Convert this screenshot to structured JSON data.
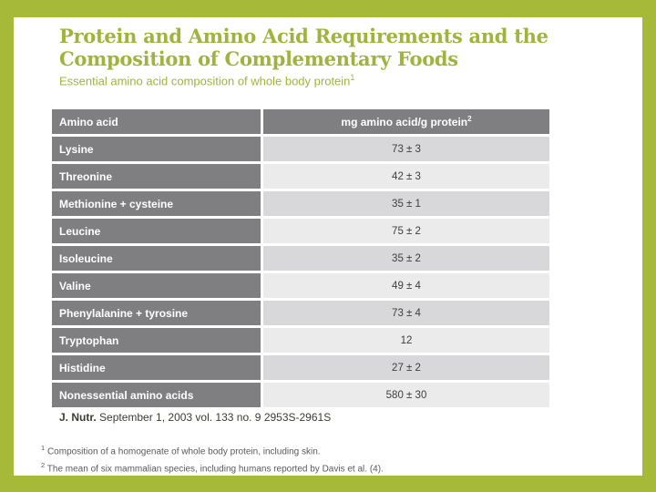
{
  "slide": {
    "title_line1": "Protein and Amino Acid Requirements and the",
    "title_line2": "Composition of Complementary Foods",
    "subtitle": "Essential amino acid composition of whole body protein",
    "subtitle_superscript": "1",
    "table": {
      "headers": {
        "col1": "Amino acid",
        "col2": "mg amino acid/g protein",
        "col2_superscript": "2"
      },
      "rows": [
        {
          "name": "Lysine",
          "value": "73 ± 3"
        },
        {
          "name": "Threonine",
          "value": "42 ± 3"
        },
        {
          "name": "Methionine + cysteine",
          "value": "35 ± 1"
        },
        {
          "name": "Leucine",
          "value": "75 ± 2"
        },
        {
          "name": "Isoleucine",
          "value": "35 ± 2"
        },
        {
          "name": "Valine",
          "value": "49 ± 4"
        },
        {
          "name": "Phenylalanine + tyrosine",
          "value": "73 ± 4"
        },
        {
          "name": "Tryptophan",
          "value": "12"
        },
        {
          "name": "Histidine",
          "value": "27 ± 2"
        },
        {
          "name": "Nonessential amino acids",
          "value": "580 ± 30"
        }
      ]
    },
    "citation": {
      "journal": "J. Nutr.",
      "rest": " September 1, 2003 vol. 133 no. 9 2953S-2961S"
    },
    "footnotes": [
      {
        "marker": "1",
        "text": " Composition of a homogenate of whole body protein, including skin."
      },
      {
        "marker": "2",
        "text": " The mean of six mammalian species, including humans reported by Davis et al. (4)."
      }
    ],
    "colors": {
      "frame_green": "#a6b939",
      "title_green": "#a0b43c",
      "header_gray": "#7f7f82",
      "row_gray_dark": "#d8d8da",
      "row_gray_light": "#ebebec"
    }
  }
}
